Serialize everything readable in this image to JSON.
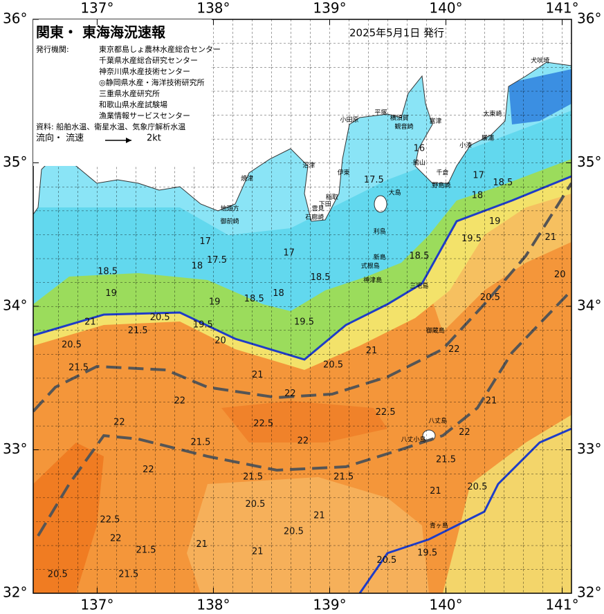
{
  "header": {
    "title": "関東・ 東海海況速報",
    "date": "2025年5月1日 発行",
    "agencies_label": "発行機関:",
    "agencies": [
      "東京都島しょ農林水産総合センター",
      "千葉県水産総合研究センター",
      "神奈川県水産技術センター",
      "◎静岡県水産・海洋技術研究所",
      "三重県水産研究所",
      "和歌山県水産試験場",
      "漁業情報サービスセンター"
    ],
    "source": "資料: 船舶水温、衛星水温、気象庁解析水温",
    "flow_label": "流向・ 流速",
    "flow_scale": "2kt"
  },
  "axes": {
    "xlim": [
      136.45,
      141.08
    ],
    "ylim": [
      32,
      36
    ],
    "xticks": [
      {
        "value": 137,
        "label": "137°"
      },
      {
        "value": 138,
        "label": "138°"
      },
      {
        "value": 139,
        "label": "139°"
      },
      {
        "value": 140,
        "label": "140°"
      },
      {
        "value": 141,
        "label": "141°"
      }
    ],
    "yticks": [
      {
        "value": 32,
        "label": "32°"
      },
      {
        "value": 33,
        "label": "33°"
      },
      {
        "value": 34,
        "label": "34°"
      },
      {
        "value": 35,
        "label": "35°"
      },
      {
        "value": 36,
        "label": "36°"
      }
    ]
  },
  "map": {
    "contour_labels": [
      {
        "value": 17,
        "lon": 137.93,
        "lat": 34.45
      },
      {
        "value": 18,
        "lon": 137.86,
        "lat": 34.28
      },
      {
        "value": 17.5,
        "lon": 138.03,
        "lat": 34.32
      },
      {
        "value": 18.5,
        "lon": 137.09,
        "lat": 34.24
      },
      {
        "value": 19,
        "lon": 137.12,
        "lat": 34.09
      },
      {
        "value": 19,
        "lon": 138.01,
        "lat": 34.03
      },
      {
        "value": 18.5,
        "lon": 138.35,
        "lat": 34.05
      },
      {
        "value": 18,
        "lon": 138.56,
        "lat": 34.09
      },
      {
        "value": 17,
        "lon": 138.65,
        "lat": 34.37
      },
      {
        "value": 17.5,
        "lon": 139.38,
        "lat": 34.88
      },
      {
        "value": 18.5,
        "lon": 138.92,
        "lat": 34.2
      },
      {
        "value": 19.5,
        "lon": 138.78,
        "lat": 33.89
      },
      {
        "value": 20.5,
        "lon": 137.54,
        "lat": 33.92
      },
      {
        "value": 19.5,
        "lon": 137.91,
        "lat": 33.87
      },
      {
        "value": 20,
        "lon": 138.06,
        "lat": 33.76
      },
      {
        "value": 21.5,
        "lon": 137.35,
        "lat": 33.83
      },
      {
        "value": 20.5,
        "lon": 136.78,
        "lat": 33.73
      },
      {
        "value": 21,
        "lon": 136.94,
        "lat": 33.89
      },
      {
        "value": 21.5,
        "lon": 136.84,
        "lat": 33.57
      },
      {
        "value": 21,
        "lon": 138.38,
        "lat": 33.52
      },
      {
        "value": 22,
        "lon": 137.71,
        "lat": 33.34
      },
      {
        "value": 22,
        "lon": 137.19,
        "lat": 33.19
      },
      {
        "value": 22.5,
        "lon": 138.43,
        "lat": 33.18
      },
      {
        "value": 22,
        "lon": 138.77,
        "lat": 33.06
      },
      {
        "value": 22.5,
        "lon": 139.48,
        "lat": 33.26
      },
      {
        "value": 20.5,
        "lon": 139.03,
        "lat": 33.59
      },
      {
        "value": 21,
        "lon": 139.36,
        "lat": 33.69
      },
      {
        "value": 22,
        "lon": 140.07,
        "lat": 33.7
      },
      {
        "value": 22,
        "lon": 138.66,
        "lat": 33.39
      },
      {
        "value": 21,
        "lon": 139.91,
        "lat": 32.71
      },
      {
        "value": 21.5,
        "lon": 138.34,
        "lat": 32.81
      },
      {
        "value": 21.5,
        "lon": 139.12,
        "lat": 32.81
      },
      {
        "value": 20.5,
        "lon": 138.36,
        "lat": 32.62
      },
      {
        "value": 20.5,
        "lon": 138.69,
        "lat": 32.43
      },
      {
        "value": 21,
        "lon": 138.91,
        "lat": 32.54
      },
      {
        "value": 22,
        "lon": 137.44,
        "lat": 32.86
      },
      {
        "value": 21.5,
        "lon": 137.89,
        "lat": 33.05
      },
      {
        "value": 22.5,
        "lon": 137.11,
        "lat": 32.51
      },
      {
        "value": 21.5,
        "lon": 137.42,
        "lat": 32.3
      },
      {
        "value": 22,
        "lon": 137.16,
        "lat": 32.38
      },
      {
        "value": 21,
        "lon": 137.9,
        "lat": 32.34
      },
      {
        "value": 21,
        "lon": 138.38,
        "lat": 32.29
      },
      {
        "value": 20.5,
        "lon": 136.66,
        "lat": 32.13
      },
      {
        "value": 21.5,
        "lon": 137.27,
        "lat": 32.13
      },
      {
        "value": 20.5,
        "lon": 139.49,
        "lat": 32.23
      },
      {
        "value": 19.5,
        "lon": 139.84,
        "lat": 32.28
      },
      {
        "value": 20.5,
        "lon": 140.27,
        "lat": 32.74
      },
      {
        "value": 20,
        "lon": 140.98,
        "lat": 34.22
      },
      {
        "value": 21,
        "lon": 140.9,
        "lat": 34.48
      },
      {
        "value": 19.5,
        "lon": 140.22,
        "lat": 34.47
      },
      {
        "value": 19,
        "lon": 140.42,
        "lat": 34.59
      },
      {
        "value": 18.5,
        "lon": 140.49,
        "lat": 34.86
      },
      {
        "value": 18,
        "lon": 140.27,
        "lat": 34.77
      },
      {
        "value": 17,
        "lon": 140.28,
        "lat": 34.91
      },
      {
        "value": 16,
        "lon": 139.77,
        "lat": 35.1
      },
      {
        "value": 18.5,
        "lon": 139.77,
        "lat": 34.35
      },
      {
        "value": 20.5,
        "lon": 140.38,
        "lat": 34.06
      },
      {
        "value": 21,
        "lon": 140.39,
        "lat": 33.34
      },
      {
        "value": 22,
        "lon": 140.16,
        "lat": 33.12
      },
      {
        "value": 21.5,
        "lon": 140.0,
        "lat": 32.93
      }
    ],
    "places": [
      {
        "name": "犬吠埼",
        "lon": 140.81,
        "lat": 35.71
      },
      {
        "name": "太東崎",
        "lon": 140.4,
        "lat": 35.34
      },
      {
        "name": "勝浦",
        "lon": 140.36,
        "lat": 35.17
      },
      {
        "name": "小湊",
        "lon": 140.17,
        "lat": 35.12
      },
      {
        "name": "千倉",
        "lon": 139.97,
        "lat": 34.93
      },
      {
        "name": "館山",
        "lon": 139.77,
        "lat": 35.0
      },
      {
        "name": "野島崎",
        "lon": 139.96,
        "lat": 34.84
      },
      {
        "name": "富津",
        "lon": 139.91,
        "lat": 35.29
      },
      {
        "name": "横須賀",
        "lon": 139.6,
        "lat": 35.31
      },
      {
        "name": "観音崎",
        "lon": 139.64,
        "lat": 35.25
      },
      {
        "name": "平塚",
        "lon": 139.44,
        "lat": 35.35
      },
      {
        "name": "小田原",
        "lon": 139.17,
        "lat": 35.3
      },
      {
        "name": "伊東",
        "lon": 139.12,
        "lat": 34.93
      },
      {
        "name": "大島",
        "lon": 139.56,
        "lat": 34.79
      },
      {
        "name": "沼津",
        "lon": 138.82,
        "lat": 34.98
      },
      {
        "name": "焼津",
        "lon": 138.29,
        "lat": 34.89
      },
      {
        "name": "稲取",
        "lon": 139.02,
        "lat": 34.76
      },
      {
        "name": "下田",
        "lon": 138.96,
        "lat": 34.71
      },
      {
        "name": "雲見",
        "lon": 138.9,
        "lat": 34.68
      },
      {
        "name": "石廊崎",
        "lon": 138.87,
        "lat": 34.62
      },
      {
        "name": "地頭方",
        "lon": 138.14,
        "lat": 34.68
      },
      {
        "name": "御前崎",
        "lon": 138.14,
        "lat": 34.59
      },
      {
        "name": "利島",
        "lon": 139.43,
        "lat": 34.52
      },
      {
        "name": "新島",
        "lon": 139.43,
        "lat": 34.34
      },
      {
        "name": "式根島",
        "lon": 139.35,
        "lat": 34.28
      },
      {
        "name": "神津島",
        "lon": 139.37,
        "lat": 34.18
      },
      {
        "name": "三宅島",
        "lon": 139.77,
        "lat": 34.14
      },
      {
        "name": "御蔵島",
        "lon": 139.91,
        "lat": 33.83
      },
      {
        "name": "八丈島",
        "lon": 139.93,
        "lat": 33.2
      },
      {
        "name": "八丈小島",
        "lon": 139.72,
        "lat": 33.07
      },
      {
        "name": "青ヶ島",
        "lon": 139.94,
        "lat": 32.47
      }
    ]
  }
}
